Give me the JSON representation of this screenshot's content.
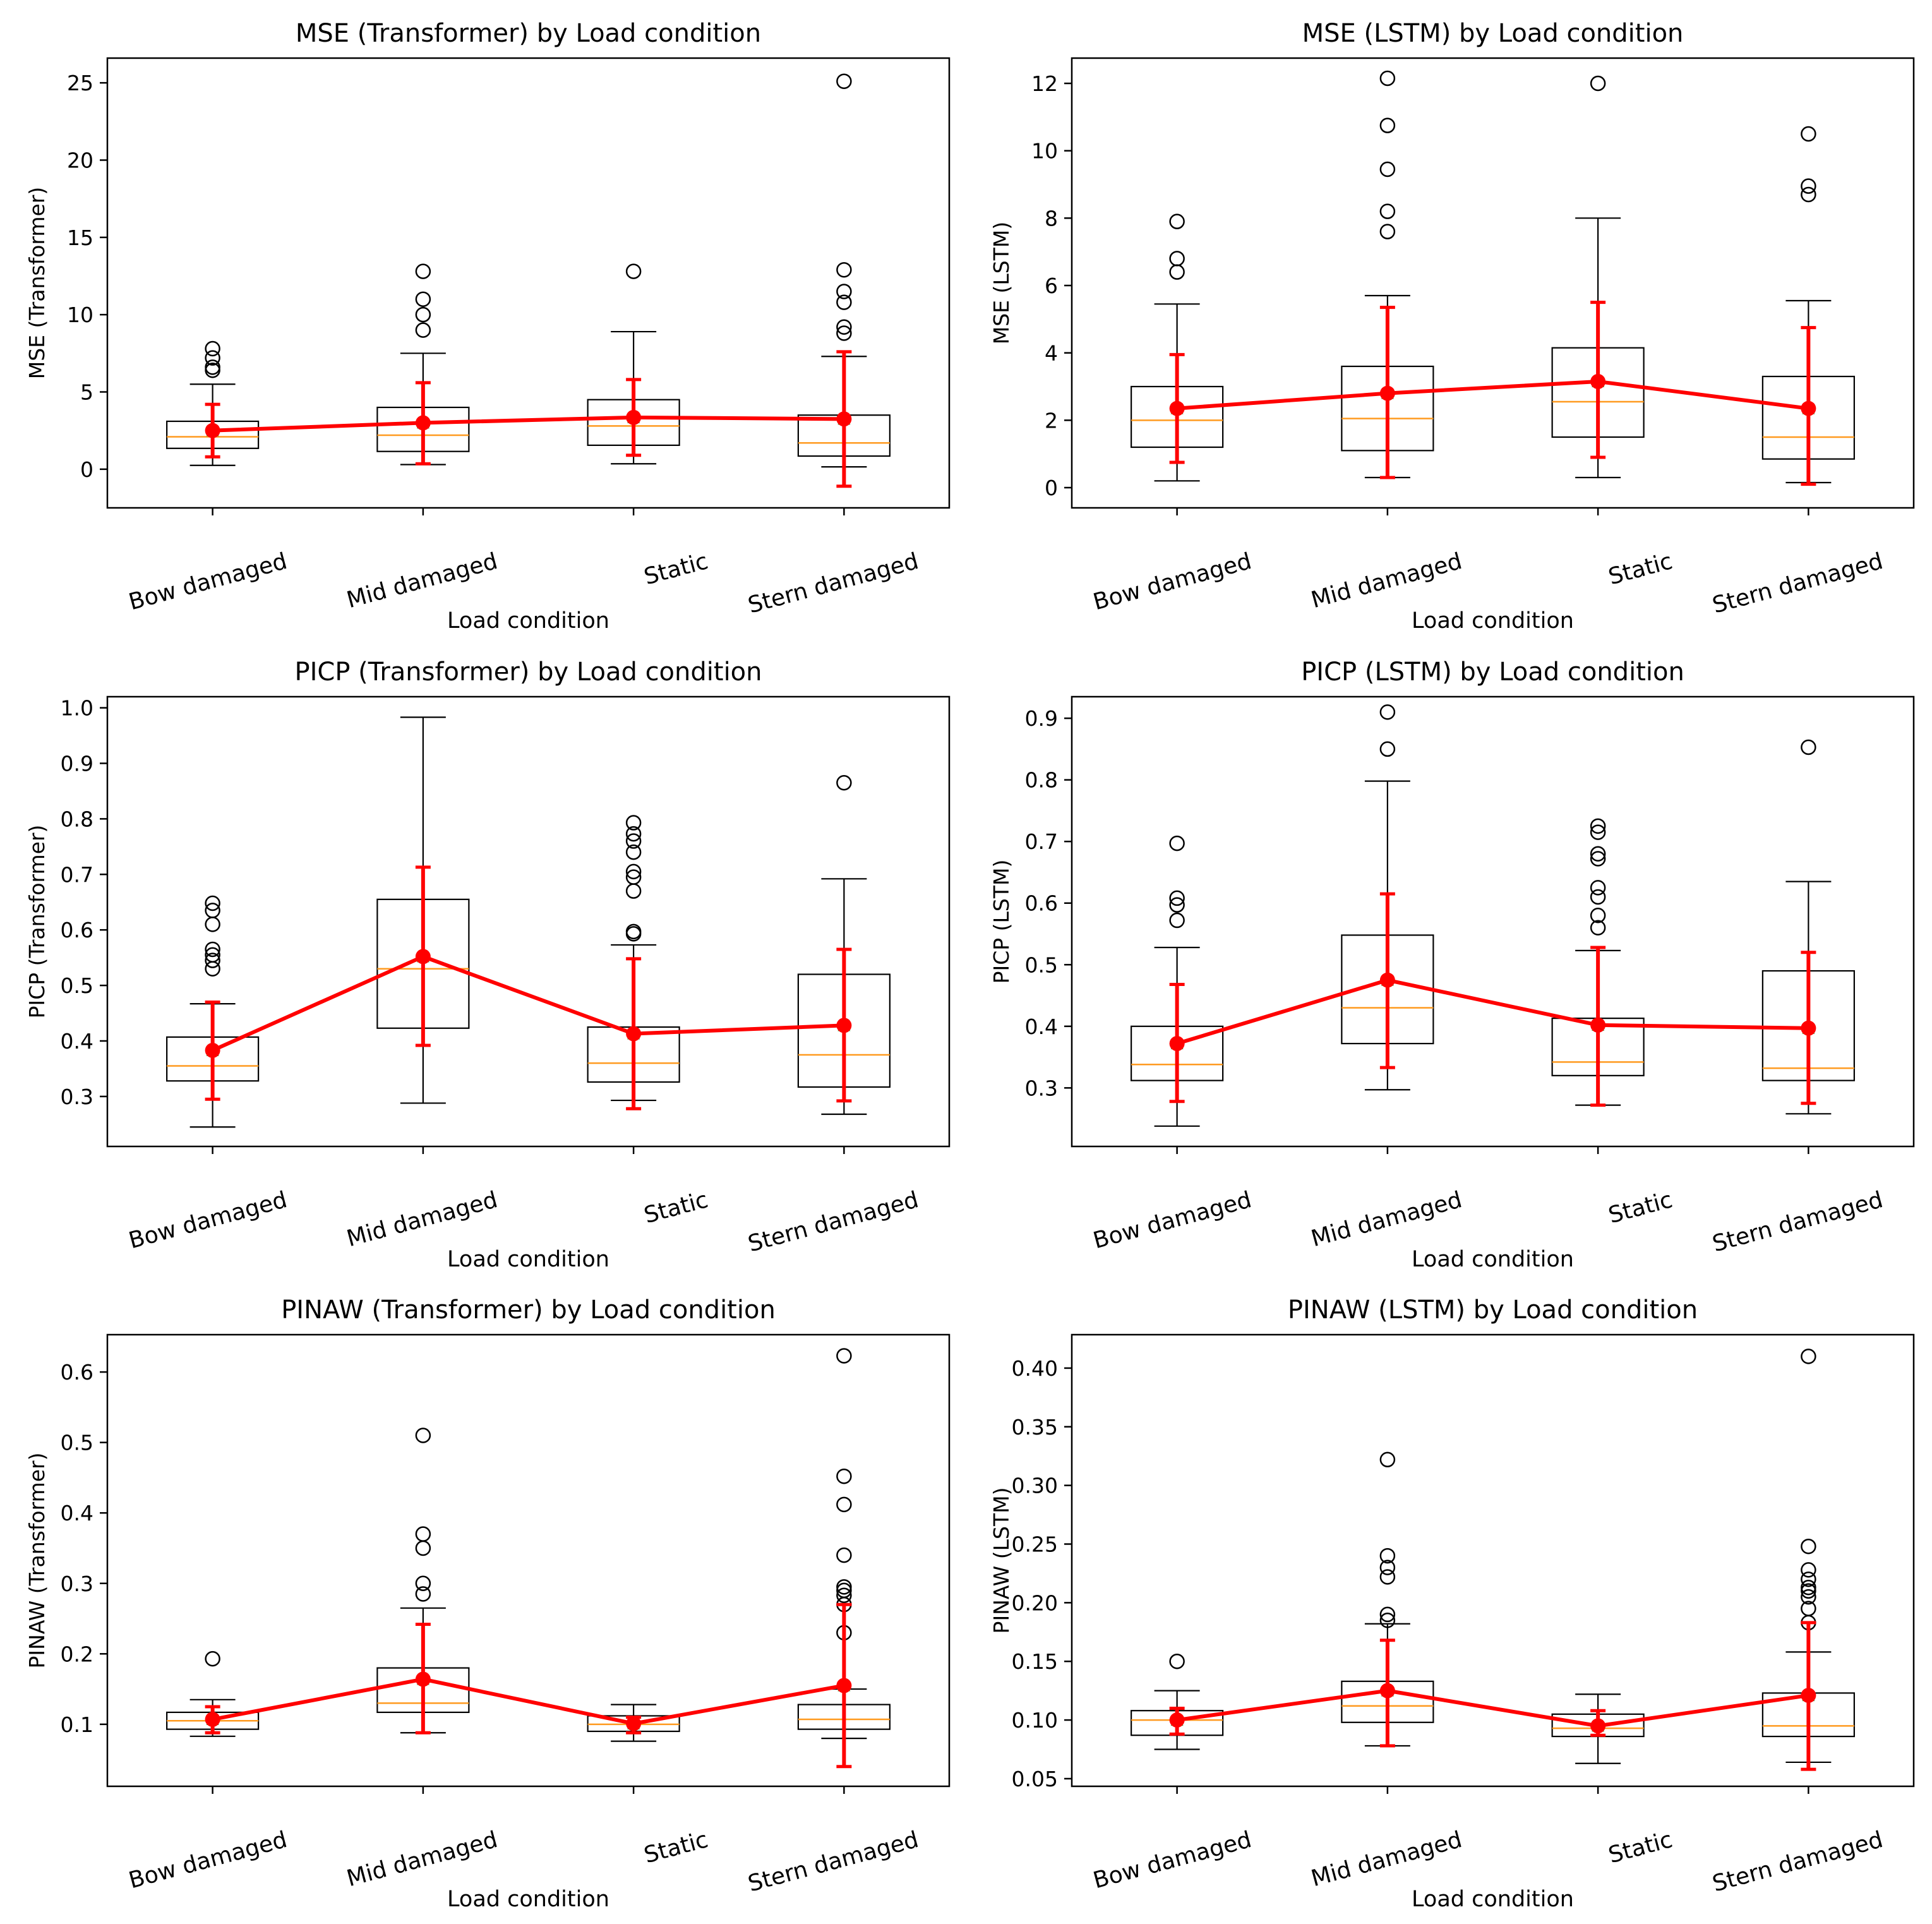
{
  "figure": {
    "x_label": "Load condition",
    "categories": [
      "Bow damaged",
      "Mid damaged",
      "Static",
      "Stern damaged"
    ],
    "colors": {
      "box": "#000000",
      "median": "#ff9a1f",
      "mean_line": "#ff0000",
      "mean_marker": "#ff0000",
      "mean_triangle": "#2ca02c",
      "outlier": "#000000"
    }
  },
  "chart_data": [
    {
      "type": "boxplot",
      "title": "MSE (Transformer) by Load condition",
      "xlabel": "Load condition",
      "ylabel": "MSE (Transformer)",
      "ylim": [
        -2.5,
        26.6
      ],
      "yticks": [
        0,
        5,
        10,
        15,
        20,
        25
      ],
      "tick_labels": [
        "0",
        "5",
        "10",
        "15",
        "20",
        "25"
      ],
      "grid": false,
      "categories": [
        "Bow damaged",
        "Mid damaged",
        "Static",
        "Stern damaged"
      ],
      "boxes": [
        {
          "whislo": 0.25,
          "q1": 1.35,
          "med": 2.1,
          "q3": 3.1,
          "whishi": 5.5,
          "fliers": [
            6.4,
            6.6,
            7.2,
            7.8
          ]
        },
        {
          "whislo": 0.3,
          "q1": 1.15,
          "med": 2.2,
          "q3": 4.0,
          "whishi": 7.5,
          "fliers": [
            9.0,
            10.0,
            11.0,
            12.8
          ]
        },
        {
          "whislo": 0.35,
          "q1": 1.55,
          "med": 2.8,
          "q3": 4.5,
          "whishi": 8.9,
          "fliers": [
            12.8
          ]
        },
        {
          "whislo": 0.15,
          "q1": 0.85,
          "med": 1.7,
          "q3": 3.5,
          "whishi": 7.3,
          "fliers": [
            8.8,
            9.2,
            10.8,
            11.5,
            12.9,
            25.1
          ]
        }
      ],
      "mean": [
        2.5,
        3.0,
        3.35,
        3.25
      ],
      "err_low": [
        0.8,
        0.35,
        0.9,
        -1.1
      ],
      "err_high": [
        4.2,
        5.6,
        5.8,
        7.6
      ]
    },
    {
      "type": "boxplot",
      "title": "MSE (LSTM) by Load condition",
      "xlabel": "Load condition",
      "ylabel": "MSE (LSTM)",
      "ylim": [
        -0.6,
        12.75
      ],
      "yticks": [
        0,
        2,
        4,
        6,
        8,
        10,
        12
      ],
      "tick_labels": [
        "0",
        "2",
        "4",
        "6",
        "8",
        "10",
        "12"
      ],
      "grid": false,
      "categories": [
        "Bow damaged",
        "Mid damaged",
        "Static",
        "Stern damaged"
      ],
      "boxes": [
        {
          "whislo": 0.2,
          "q1": 1.2,
          "med": 2.0,
          "q3": 3.0,
          "whishi": 5.45,
          "fliers": [
            6.4,
            6.8,
            7.9
          ]
        },
        {
          "whislo": 0.3,
          "q1": 1.1,
          "med": 2.05,
          "q3": 3.6,
          "whishi": 5.7,
          "fliers": [
            7.6,
            8.2,
            9.45,
            10.75,
            12.15
          ]
        },
        {
          "whislo": 0.3,
          "q1": 1.5,
          "med": 2.55,
          "q3": 4.15,
          "whishi": 8.0,
          "fliers": [
            12.0
          ]
        },
        {
          "whislo": 0.15,
          "q1": 0.85,
          "med": 1.5,
          "q3": 3.3,
          "whishi": 5.55,
          "fliers": [
            8.7,
            8.95,
            10.5
          ]
        }
      ],
      "mean": [
        2.35,
        2.8,
        3.15,
        2.35
      ],
      "err_low": [
        0.75,
        0.3,
        0.9,
        0.1
      ],
      "err_high": [
        3.95,
        5.35,
        5.5,
        4.75
      ]
    },
    {
      "type": "boxplot",
      "title": "PICP (Transformer) by Load condition",
      "xlabel": "Load condition",
      "ylabel": "PICP (Transformer)",
      "ylim": [
        0.21,
        1.02
      ],
      "yticks": [
        0.3,
        0.4,
        0.5,
        0.6,
        0.7,
        0.8,
        0.9,
        1.0
      ],
      "tick_labels": [
        "0.3",
        "0.4",
        "0.5",
        "0.6",
        "0.7",
        "0.8",
        "0.9",
        "1.0"
      ],
      "grid": false,
      "categories": [
        "Bow damaged",
        "Mid damaged",
        "Static",
        "Stern damaged"
      ],
      "boxes": [
        {
          "whislo": 0.245,
          "q1": 0.328,
          "med": 0.355,
          "q3": 0.407,
          "whishi": 0.467,
          "fliers": [
            0.53,
            0.545,
            0.555,
            0.565,
            0.61,
            0.635,
            0.648
          ]
        },
        {
          "whislo": 0.288,
          "q1": 0.423,
          "med": 0.53,
          "q3": 0.655,
          "whishi": 0.983,
          "fliers": []
        },
        {
          "whislo": 0.293,
          "q1": 0.326,
          "med": 0.36,
          "q3": 0.425,
          "whishi": 0.573,
          "fliers": [
            0.593,
            0.597,
            0.67,
            0.695,
            0.705,
            0.74,
            0.76,
            0.773,
            0.793
          ]
        },
        {
          "whislo": 0.268,
          "q1": 0.317,
          "med": 0.375,
          "q3": 0.52,
          "whishi": 0.692,
          "fliers": [
            0.865
          ]
        }
      ],
      "mean": [
        0.383,
        0.552,
        0.413,
        0.428
      ],
      "err_low": [
        0.295,
        0.392,
        0.278,
        0.292
      ],
      "err_high": [
        0.47,
        0.713,
        0.548,
        0.565
      ]
    },
    {
      "type": "boxplot",
      "title": "PICP (LSTM) by Load condition",
      "xlabel": "Load condition",
      "ylabel": "PICP (LSTM)",
      "ylim": [
        0.205,
        0.935
      ],
      "yticks": [
        0.3,
        0.4,
        0.5,
        0.6,
        0.7,
        0.8,
        0.9
      ],
      "tick_labels": [
        "0.3",
        "0.4",
        "0.5",
        "0.6",
        "0.7",
        "0.8",
        "0.9"
      ],
      "grid": false,
      "categories": [
        "Bow damaged",
        "Mid damaged",
        "Static",
        "Stern damaged"
      ],
      "boxes": [
        {
          "whislo": 0.238,
          "q1": 0.312,
          "med": 0.338,
          "q3": 0.4,
          "whishi": 0.528,
          "fliers": [
            0.572,
            0.597,
            0.608,
            0.697
          ]
        },
        {
          "whislo": 0.297,
          "q1": 0.372,
          "med": 0.43,
          "q3": 0.548,
          "whishi": 0.798,
          "fliers": [
            0.85,
            0.91
          ]
        },
        {
          "whislo": 0.272,
          "q1": 0.32,
          "med": 0.342,
          "q3": 0.413,
          "whishi": 0.523,
          "fliers": [
            0.56,
            0.58,
            0.61,
            0.625,
            0.672,
            0.68,
            0.715,
            0.725
          ]
        },
        {
          "whislo": 0.258,
          "q1": 0.312,
          "med": 0.332,
          "q3": 0.49,
          "whishi": 0.635,
          "fliers": [
            0.853
          ]
        }
      ],
      "mean": [
        0.372,
        0.475,
        0.402,
        0.397
      ],
      "err_low": [
        0.278,
        0.333,
        0.272,
        0.275
      ],
      "err_high": [
        0.468,
        0.615,
        0.528,
        0.52
      ]
    },
    {
      "type": "boxplot",
      "title": "PINAW (Transformer) by Load condition",
      "xlabel": "Load condition",
      "ylabel": "PINAW (Transformer)",
      "ylim": [
        0.012,
        0.653
      ],
      "yticks": [
        0.1,
        0.2,
        0.3,
        0.4,
        0.5,
        0.6
      ],
      "tick_labels": [
        "0.1",
        "0.2",
        "0.3",
        "0.4",
        "0.5",
        "0.6"
      ],
      "grid": false,
      "categories": [
        "Bow damaged",
        "Mid damaged",
        "Static",
        "Stern damaged"
      ],
      "boxes": [
        {
          "whislo": 0.083,
          "q1": 0.093,
          "med": 0.105,
          "q3": 0.117,
          "whishi": 0.135,
          "fliers": [
            0.193
          ]
        },
        {
          "whislo": 0.088,
          "q1": 0.117,
          "med": 0.13,
          "q3": 0.18,
          "whishi": 0.265,
          "fliers": [
            0.285,
            0.3,
            0.35,
            0.37,
            0.51
          ]
        },
        {
          "whislo": 0.076,
          "q1": 0.09,
          "med": 0.1,
          "q3": 0.112,
          "whishi": 0.128,
          "fliers": []
        },
        {
          "whislo": 0.08,
          "q1": 0.093,
          "med": 0.107,
          "q3": 0.128,
          "whishi": 0.15,
          "fliers": [
            0.23,
            0.27,
            0.283,
            0.29,
            0.295,
            0.34,
            0.412,
            0.452,
            0.623
          ]
        }
      ],
      "mean": [
        0.107,
        0.164,
        0.101,
        0.155
      ],
      "err_low": [
        0.088,
        0.088,
        0.088,
        0.04
      ],
      "err_high": [
        0.125,
        0.242,
        0.11,
        0.27
      ]
    },
    {
      "type": "boxplot",
      "title": "PINAW (LSTM) by Load condition",
      "xlabel": "Load condition",
      "ylabel": "PINAW (LSTM)",
      "ylim": [
        0.0435,
        0.4285
      ],
      "yticks": [
        0.05,
        0.1,
        0.15,
        0.2,
        0.25,
        0.3,
        0.35,
        0.4
      ],
      "tick_labels": [
        "0.05",
        "0.10",
        "0.15",
        "0.20",
        "0.25",
        "0.30",
        "0.35",
        "0.40"
      ],
      "grid": false,
      "categories": [
        "Bow damaged",
        "Mid damaged",
        "Static",
        "Stern damaged"
      ],
      "boxes": [
        {
          "whislo": 0.075,
          "q1": 0.087,
          "med": 0.1,
          "q3": 0.108,
          "whishi": 0.125,
          "fliers": [
            0.15
          ]
        },
        {
          "whislo": 0.078,
          "q1": 0.098,
          "med": 0.112,
          "q3": 0.133,
          "whishi": 0.182,
          "fliers": [
            0.185,
            0.19,
            0.222,
            0.23,
            0.24,
            0.322
          ]
        },
        {
          "whislo": 0.063,
          "q1": 0.086,
          "med": 0.093,
          "q3": 0.105,
          "whishi": 0.122,
          "fliers": []
        },
        {
          "whislo": 0.064,
          "q1": 0.086,
          "med": 0.095,
          "q3": 0.123,
          "whishi": 0.158,
          "fliers": [
            0.183,
            0.195,
            0.205,
            0.21,
            0.213,
            0.22,
            0.228,
            0.248,
            0.41
          ]
        }
      ],
      "mean": [
        0.1,
        0.125,
        0.095,
        0.121
      ],
      "err_low": [
        0.088,
        0.078,
        0.087,
        0.058
      ],
      "err_high": [
        0.11,
        0.168,
        0.108,
        0.183
      ]
    }
  ]
}
